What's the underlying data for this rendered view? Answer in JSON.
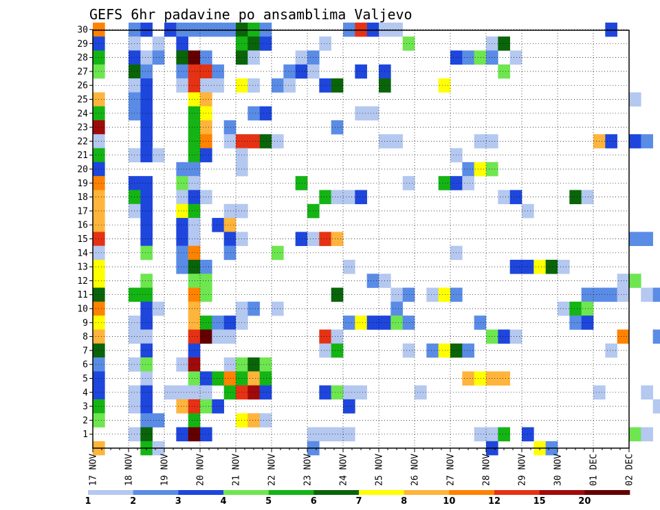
{
  "chart_data": {
    "type": "heatmap",
    "title": "GEFS 6hr padavine po ansamblima Valjevo",
    "x_labels": [
      "17 NOV",
      "18 NOV",
      "19 NOV",
      "20 NOV",
      "21 NOV",
      "22 NOV",
      "23 NOV",
      "24 NOV",
      "25 NOV",
      "26 NOV",
      "27 NOV",
      "28 NOV",
      "29 NOV",
      "30 NOV",
      "01 DEC",
      "02 DEC"
    ],
    "y_labels": [
      "1",
      "2",
      "3",
      "4",
      "5",
      "6",
      "7",
      "8",
      "9",
      "10",
      "11",
      "12",
      "13",
      "14",
      "15",
      "16",
      "17",
      "18",
      "19",
      "20",
      "21",
      "22",
      "23",
      "24",
      "25",
      "26",
      "27",
      "28",
      "29",
      "30"
    ],
    "ylim": [
      0,
      30
    ],
    "grid": true,
    "colorbar": {
      "levels": [
        "1",
        "2",
        "3",
        "4",
        "5",
        "6",
        "7",
        "8",
        "10",
        "12",
        "15",
        "20"
      ],
      "colors": [
        "#b4c8f0",
        "#5a8ce6",
        "#1e46dc",
        "#6ee650",
        "#14b414",
        "#0a640a",
        "#ffff00",
        "#ffb43c",
        "#ff8200",
        "#e63214",
        "#a00a0a",
        "#640000"
      ]
    },
    "cells": [
      [
        0,
        30,
        8
      ],
      [
        3,
        30,
        1
      ],
      [
        4,
        30,
        2
      ],
      [
        6,
        30,
        2
      ],
      [
        7,
        30,
        1
      ],
      [
        8,
        30,
        1
      ],
      [
        9,
        30,
        1
      ],
      [
        10,
        30,
        1
      ],
      [
        11,
        30,
        1
      ],
      [
        12,
        30,
        5
      ],
      [
        13,
        30,
        4
      ],
      [
        14,
        30,
        1
      ],
      [
        21,
        30,
        1
      ],
      [
        22,
        30,
        9
      ],
      [
        23,
        30,
        2
      ],
      [
        24,
        30,
        0
      ],
      [
        25,
        30,
        0
      ],
      [
        43,
        30,
        2
      ],
      [
        0,
        29,
        2
      ],
      [
        3,
        29,
        0
      ],
      [
        5,
        29,
        0
      ],
      [
        7,
        29,
        2
      ],
      [
        12,
        29,
        4
      ],
      [
        13,
        29,
        5
      ],
      [
        14,
        29,
        2
      ],
      [
        19,
        29,
        0
      ],
      [
        26,
        29,
        3
      ],
      [
        33,
        29,
        0
      ],
      [
        34,
        29,
        5
      ],
      [
        0,
        28,
        4
      ],
      [
        3,
        28,
        2
      ],
      [
        4,
        28,
        0
      ],
      [
        5,
        28,
        1
      ],
      [
        7,
        28,
        5
      ],
      [
        8,
        28,
        11
      ],
      [
        9,
        28,
        1
      ],
      [
        12,
        28,
        5
      ],
      [
        13,
        28,
        0
      ],
      [
        17,
        28,
        0
      ],
      [
        18,
        28,
        1
      ],
      [
        30,
        28,
        2
      ],
      [
        31,
        28,
        1
      ],
      [
        32,
        28,
        3
      ],
      [
        33,
        28,
        1
      ],
      [
        35,
        28,
        0
      ],
      [
        0,
        27,
        3
      ],
      [
        3,
        27,
        5
      ],
      [
        4,
        27,
        1
      ],
      [
        7,
        27,
        1
      ],
      [
        8,
        27,
        9
      ],
      [
        9,
        27,
        9
      ],
      [
        10,
        27,
        1
      ],
      [
        16,
        27,
        1
      ],
      [
        17,
        27,
        2
      ],
      [
        18,
        27,
        0
      ],
      [
        22,
        27,
        2
      ],
      [
        24,
        27,
        2
      ],
      [
        34,
        27,
        3
      ],
      [
        3,
        26,
        0
      ],
      [
        4,
        26,
        2
      ],
      [
        7,
        26,
        0
      ],
      [
        8,
        26,
        9
      ],
      [
        9,
        26,
        0
      ],
      [
        10,
        26,
        0
      ],
      [
        12,
        26,
        6
      ],
      [
        13,
        26,
        0
      ],
      [
        15,
        26,
        1
      ],
      [
        16,
        26,
        0
      ],
      [
        19,
        26,
        2
      ],
      [
        20,
        26,
        5
      ],
      [
        24,
        26,
        5
      ],
      [
        29,
        26,
        6
      ],
      [
        0,
        25,
        7
      ],
      [
        3,
        25,
        1
      ],
      [
        4,
        25,
        2
      ],
      [
        8,
        25,
        6
      ],
      [
        9,
        25,
        7
      ],
      [
        45,
        25,
        0
      ],
      [
        0,
        24,
        4
      ],
      [
        3,
        24,
        1
      ],
      [
        4,
        24,
        2
      ],
      [
        8,
        24,
        4
      ],
      [
        9,
        24,
        6
      ],
      [
        13,
        24,
        1
      ],
      [
        14,
        24,
        2
      ],
      [
        22,
        24,
        0
      ],
      [
        23,
        24,
        0
      ],
      [
        0,
        23,
        10
      ],
      [
        4,
        23,
        2
      ],
      [
        8,
        23,
        4
      ],
      [
        9,
        23,
        7
      ],
      [
        11,
        23,
        1
      ],
      [
        20,
        23,
        1
      ],
      [
        0,
        22,
        0
      ],
      [
        4,
        22,
        2
      ],
      [
        8,
        22,
        4
      ],
      [
        9,
        22,
        8
      ],
      [
        11,
        22,
        0
      ],
      [
        12,
        22,
        9
      ],
      [
        13,
        22,
        9
      ],
      [
        14,
        22,
        5
      ],
      [
        15,
        22,
        0
      ],
      [
        24,
        22,
        0
      ],
      [
        25,
        22,
        0
      ],
      [
        32,
        22,
        0
      ],
      [
        33,
        22,
        0
      ],
      [
        42,
        22,
        7
      ],
      [
        43,
        22,
        2
      ],
      [
        45,
        22,
        2
      ],
      [
        46,
        22,
        1
      ],
      [
        0,
        21,
        4
      ],
      [
        3,
        21,
        0
      ],
      [
        4,
        21,
        2
      ],
      [
        5,
        21,
        0
      ],
      [
        8,
        21,
        4
      ],
      [
        9,
        21,
        2
      ],
      [
        12,
        21,
        0
      ],
      [
        30,
        21,
        0
      ],
      [
        0,
        20,
        2
      ],
      [
        7,
        20,
        1
      ],
      [
        8,
        20,
        1
      ],
      [
        12,
        20,
        0
      ],
      [
        31,
        20,
        1
      ],
      [
        32,
        20,
        6
      ],
      [
        33,
        20,
        3
      ],
      [
        0,
        19,
        8
      ],
      [
        3,
        19,
        2
      ],
      [
        4,
        19,
        2
      ],
      [
        7,
        19,
        3
      ],
      [
        8,
        19,
        0
      ],
      [
        17,
        19,
        4
      ],
      [
        26,
        19,
        0
      ],
      [
        29,
        19,
        4
      ],
      [
        30,
        19,
        2
      ],
      [
        31,
        19,
        0
      ],
      [
        0,
        18,
        7
      ],
      [
        3,
        18,
        4
      ],
      [
        4,
        18,
        2
      ],
      [
        7,
        18,
        0
      ],
      [
        8,
        18,
        2
      ],
      [
        9,
        18,
        0
      ],
      [
        19,
        18,
        4
      ],
      [
        20,
        18,
        0
      ],
      [
        21,
        18,
        0
      ],
      [
        22,
        18,
        2
      ],
      [
        34,
        18,
        0
      ],
      [
        35,
        18,
        2
      ],
      [
        40,
        18,
        5
      ],
      [
        41,
        18,
        0
      ],
      [
        0,
        17,
        7
      ],
      [
        3,
        17,
        0
      ],
      [
        4,
        17,
        2
      ],
      [
        7,
        17,
        6
      ],
      [
        8,
        17,
        4
      ],
      [
        11,
        17,
        0
      ],
      [
        12,
        17,
        0
      ],
      [
        18,
        17,
        4
      ],
      [
        36,
        17,
        0
      ],
      [
        0,
        16,
        7
      ],
      [
        4,
        16,
        2
      ],
      [
        7,
        16,
        2
      ],
      [
        8,
        16,
        0
      ],
      [
        10,
        16,
        2
      ],
      [
        11,
        16,
        7
      ],
      [
        0,
        15,
        9
      ],
      [
        4,
        15,
        2
      ],
      [
        7,
        15,
        2
      ],
      [
        8,
        15,
        0
      ],
      [
        11,
        15,
        2
      ],
      [
        12,
        15,
        0
      ],
      [
        17,
        15,
        2
      ],
      [
        18,
        15,
        0
      ],
      [
        19,
        15,
        9
      ],
      [
        20,
        15,
        7
      ],
      [
        45,
        15,
        1
      ],
      [
        46,
        15,
        1
      ],
      [
        0,
        14,
        0
      ],
      [
        4,
        14,
        3
      ],
      [
        7,
        14,
        1
      ],
      [
        8,
        14,
        8
      ],
      [
        11,
        14,
        1
      ],
      [
        15,
        14,
        3
      ],
      [
        30,
        14,
        0
      ],
      [
        0,
        13,
        6
      ],
      [
        7,
        13,
        1
      ],
      [
        8,
        13,
        5
      ],
      [
        9,
        13,
        1
      ],
      [
        21,
        13,
        0
      ],
      [
        35,
        13,
        2
      ],
      [
        36,
        13,
        2
      ],
      [
        37,
        13,
        6
      ],
      [
        38,
        13,
        5
      ],
      [
        39,
        13,
        0
      ],
      [
        0,
        12,
        6
      ],
      [
        4,
        12,
        3
      ],
      [
        8,
        12,
        3
      ],
      [
        9,
        12,
        3
      ],
      [
        23,
        12,
        1
      ],
      [
        24,
        12,
        0
      ],
      [
        44,
        12,
        0
      ],
      [
        45,
        12,
        3
      ],
      [
        0,
        11,
        5
      ],
      [
        3,
        11,
        4
      ],
      [
        4,
        11,
        4
      ],
      [
        8,
        11,
        8
      ],
      [
        9,
        11,
        3
      ],
      [
        20,
        11,
        5
      ],
      [
        25,
        11,
        0
      ],
      [
        26,
        11,
        1
      ],
      [
        28,
        11,
        0
      ],
      [
        29,
        11,
        6
      ],
      [
        30,
        11,
        1
      ],
      [
        41,
        11,
        1
      ],
      [
        42,
        11,
        1
      ],
      [
        43,
        11,
        1
      ],
      [
        44,
        11,
        0
      ],
      [
        46,
        11,
        0
      ],
      [
        47,
        11,
        1
      ],
      [
        0,
        10,
        8
      ],
      [
        4,
        10,
        2
      ],
      [
        5,
        10,
        0
      ],
      [
        8,
        10,
        7
      ],
      [
        12,
        10,
        0
      ],
      [
        13,
        10,
        1
      ],
      [
        15,
        10,
        0
      ],
      [
        25,
        10,
        1
      ],
      [
        39,
        10,
        0
      ],
      [
        40,
        10,
        4
      ],
      [
        41,
        10,
        3
      ],
      [
        0,
        9,
        6
      ],
      [
        3,
        9,
        0
      ],
      [
        4,
        9,
        2
      ],
      [
        8,
        9,
        7
      ],
      [
        9,
        9,
        4
      ],
      [
        10,
        9,
        1
      ],
      [
        11,
        9,
        2
      ],
      [
        12,
        9,
        0
      ],
      [
        21,
        9,
        1
      ],
      [
        22,
        9,
        6
      ],
      [
        23,
        9,
        2
      ],
      [
        24,
        9,
        2
      ],
      [
        25,
        9,
        3
      ],
      [
        26,
        9,
        1
      ],
      [
        32,
        9,
        1
      ],
      [
        40,
        9,
        1
      ],
      [
        41,
        9,
        2
      ],
      [
        0,
        8,
        7
      ],
      [
        3,
        8,
        0
      ],
      [
        4,
        8,
        0
      ],
      [
        8,
        8,
        9
      ],
      [
        9,
        8,
        11
      ],
      [
        10,
        8,
        0
      ],
      [
        11,
        8,
        0
      ],
      [
        19,
        8,
        9
      ],
      [
        20,
        8,
        0
      ],
      [
        33,
        8,
        3
      ],
      [
        34,
        8,
        2
      ],
      [
        35,
        8,
        0
      ],
      [
        44,
        8,
        8
      ],
      [
        47,
        8,
        1
      ],
      [
        0,
        7,
        5
      ],
      [
        4,
        7,
        2
      ],
      [
        8,
        7,
        2
      ],
      [
        19,
        7,
        0
      ],
      [
        20,
        7,
        4
      ],
      [
        26,
        7,
        0
      ],
      [
        28,
        7,
        1
      ],
      [
        29,
        7,
        6
      ],
      [
        30,
        7,
        5
      ],
      [
        31,
        7,
        1
      ],
      [
        43,
        7,
        0
      ],
      [
        0,
        6,
        1
      ],
      [
        3,
        6,
        0
      ],
      [
        4,
        6,
        3
      ],
      [
        7,
        6,
        0
      ],
      [
        8,
        6,
        10
      ],
      [
        11,
        6,
        0
      ],
      [
        12,
        6,
        3
      ],
      [
        13,
        6,
        5
      ],
      [
        14,
        6,
        3
      ],
      [
        0,
        5,
        2
      ],
      [
        4,
        5,
        0
      ],
      [
        8,
        5,
        3
      ],
      [
        9,
        5,
        2
      ],
      [
        10,
        5,
        4
      ],
      [
        11,
        5,
        8
      ],
      [
        12,
        5,
        4
      ],
      [
        13,
        5,
        7
      ],
      [
        14,
        5,
        4
      ],
      [
        31,
        5,
        7
      ],
      [
        32,
        5,
        6
      ],
      [
        33,
        5,
        7
      ],
      [
        34,
        5,
        7
      ],
      [
        0,
        4,
        2
      ],
      [
        3,
        4,
        0
      ],
      [
        4,
        4,
        2
      ],
      [
        6,
        4,
        0
      ],
      [
        7,
        4,
        0
      ],
      [
        8,
        4,
        0
      ],
      [
        9,
        4,
        0
      ],
      [
        11,
        4,
        4
      ],
      [
        12,
        4,
        9
      ],
      [
        13,
        4,
        10
      ],
      [
        14,
        4,
        2
      ],
      [
        19,
        4,
        2
      ],
      [
        20,
        4,
        3
      ],
      [
        21,
        4,
        0
      ],
      [
        22,
        4,
        0
      ],
      [
        27,
        4,
        0
      ],
      [
        42,
        4,
        0
      ],
      [
        46,
        4,
        0
      ],
      [
        0,
        3,
        4
      ],
      [
        3,
        3,
        0
      ],
      [
        4,
        3,
        2
      ],
      [
        7,
        3,
        7
      ],
      [
        8,
        3,
        9
      ],
      [
        9,
        3,
        3
      ],
      [
        10,
        3,
        2
      ],
      [
        21,
        3,
        2
      ],
      [
        47,
        3,
        0
      ],
      [
        0,
        2,
        3
      ],
      [
        4,
        2,
        1
      ],
      [
        5,
        2,
        1
      ],
      [
        8,
        2,
        4
      ],
      [
        12,
        2,
        6
      ],
      [
        13,
        2,
        7
      ],
      [
        14,
        2,
        0
      ],
      [
        3,
        1,
        0
      ],
      [
        4,
        1,
        5
      ],
      [
        7,
        1,
        2
      ],
      [
        8,
        1,
        11
      ],
      [
        9,
        1,
        2
      ],
      [
        18,
        1,
        0
      ],
      [
        19,
        1,
        0
      ],
      [
        20,
        1,
        0
      ],
      [
        21,
        1,
        0
      ],
      [
        32,
        1,
        0
      ],
      [
        33,
        1,
        0
      ],
      [
        34,
        1,
        4
      ],
      [
        36,
        1,
        2
      ],
      [
        45,
        1,
        3
      ],
      [
        46,
        1,
        0
      ],
      [
        0,
        0,
        7
      ],
      [
        4,
        0,
        4
      ],
      [
        5,
        0,
        0
      ],
      [
        18,
        0,
        1
      ],
      [
        33,
        0,
        2
      ],
      [
        37,
        0,
        6
      ],
      [
        38,
        0,
        1
      ]
    ]
  }
}
